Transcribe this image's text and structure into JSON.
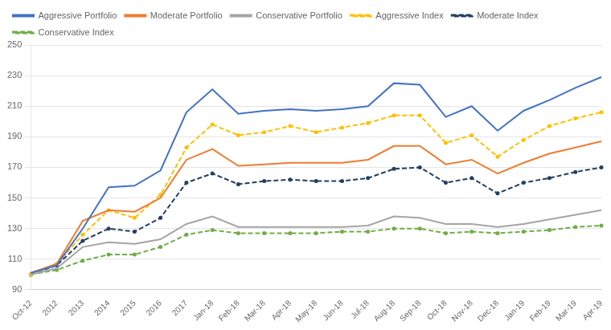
{
  "chart_data": {
    "type": "line",
    "categories": [
      "Oct-12",
      "2012",
      "2013",
      "2014",
      "2015",
      "2016",
      "2017",
      "Jan-18",
      "Feb-18",
      "Mar-18",
      "Apr-18",
      "May-18",
      "Jun-18",
      "Jul-18",
      "Aug-18",
      "Sep-18",
      "Oct-18",
      "Nov-18",
      "Dec-18",
      "Jan-19",
      "Feb-19",
      "Mar-19",
      "Apr-19"
    ],
    "series": [
      {
        "name": "Aggressive Portfolio",
        "color": "#4472C4",
        "line_style": "solid",
        "marker": "none",
        "values": [
          101,
          106,
          130,
          157,
          158,
          168,
          206,
          221,
          205,
          207,
          208,
          207,
          208,
          210,
          225,
          224,
          203,
          210,
          194,
          207,
          214,
          222,
          229
        ]
      },
      {
        "name": "Moderate Portfolio",
        "color": "#ED7D31",
        "line_style": "solid",
        "marker": "none",
        "values": [
          101,
          107,
          135,
          142,
          141,
          150,
          175,
          182,
          171,
          172,
          173,
          173,
          173,
          175,
          184,
          184,
          172,
          175,
          166,
          173,
          179,
          183,
          187
        ]
      },
      {
        "name": "Conservative Portfolio",
        "color": "#A5A5A5",
        "line_style": "solid",
        "marker": "none",
        "values": [
          100,
          104,
          118,
          121,
          120,
          123,
          133,
          138,
          131,
          131,
          131,
          131,
          131,
          132,
          138,
          137,
          133,
          133,
          131,
          133,
          136,
          139,
          142
        ]
      },
      {
        "name": "Aggressive Index",
        "color": "#FFC000",
        "line_style": "dashed",
        "marker": "circle",
        "values": [
          100,
          107,
          126,
          142,
          137,
          152,
          183,
          198,
          191,
          193,
          197,
          193,
          196,
          199,
          204,
          204,
          186,
          191,
          177,
          188,
          197,
          202,
          206
        ]
      },
      {
        "name": "Moderate Index",
        "color": "#243F60",
        "line_style": "dashed",
        "marker": "circle",
        "values": [
          100,
          106,
          122,
          130,
          128,
          137,
          160,
          166,
          159,
          161,
          162,
          161,
          161,
          163,
          169,
          170,
          160,
          163,
          153,
          160,
          163,
          167,
          170
        ]
      },
      {
        "name": "Conservative Index",
        "color": "#70AD47",
        "line_style": "dashed",
        "marker": "circle",
        "values": [
          100,
          103,
          109,
          113,
          113,
          118,
          126,
          129,
          127,
          127,
          127,
          127,
          128,
          128,
          130,
          130,
          127,
          128,
          127,
          128,
          129,
          131,
          132
        ]
      }
    ],
    "ylim": [
      90,
      250
    ],
    "yticks": [
      90,
      110,
      130,
      150,
      170,
      190,
      210,
      230,
      250
    ],
    "grid": true,
    "legend": "upper left"
  }
}
